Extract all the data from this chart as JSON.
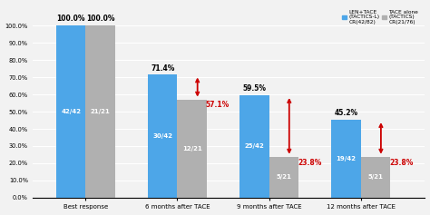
{
  "categories": [
    "Best response",
    "6 months after TACE",
    "9 months after TACE",
    "12 months after TACE"
  ],
  "blue_values": [
    100.0,
    71.4,
    59.5,
    45.2
  ],
  "gray_values": [
    100.0,
    57.1,
    23.8,
    23.8
  ],
  "blue_labels": [
    "42/42",
    "30/42",
    "25/42",
    "19/42"
  ],
  "gray_labels": [
    "21/21",
    "12/21",
    "5/21",
    "5/21"
  ],
  "blue_pct_labels": [
    "100.0%",
    "71.4%",
    "59.5%",
    "45.2%"
  ],
  "gray_pct_labels": [
    "100.0%",
    "57.1%",
    "23.8%",
    "23.8%"
  ],
  "blue_color": "#4da6e8",
  "gray_color": "#b0b0b0",
  "arrow_color": "#cc0000",
  "background_color": "#f2f2f2",
  "ylim": [
    0,
    112
  ],
  "yticks": [
    0,
    10.0,
    20.0,
    30.0,
    40.0,
    50.0,
    60.0,
    70.0,
    80.0,
    90.0,
    100.0
  ],
  "ytick_labels": [
    "0.0%",
    "10.0%",
    "20.0%",
    "30.0%",
    "40.0%",
    "50.0%",
    "60.0%",
    "70.0%",
    "80.0%",
    "90.0%",
    "100.0%"
  ],
  "legend_blue_label": "LEN+TACE\n(TACTICS-L)\nCR(42/82)",
  "legend_gray_label": "TACE alone\n(TACTICS)\nCR(21/76)",
  "bar_width": 0.32
}
